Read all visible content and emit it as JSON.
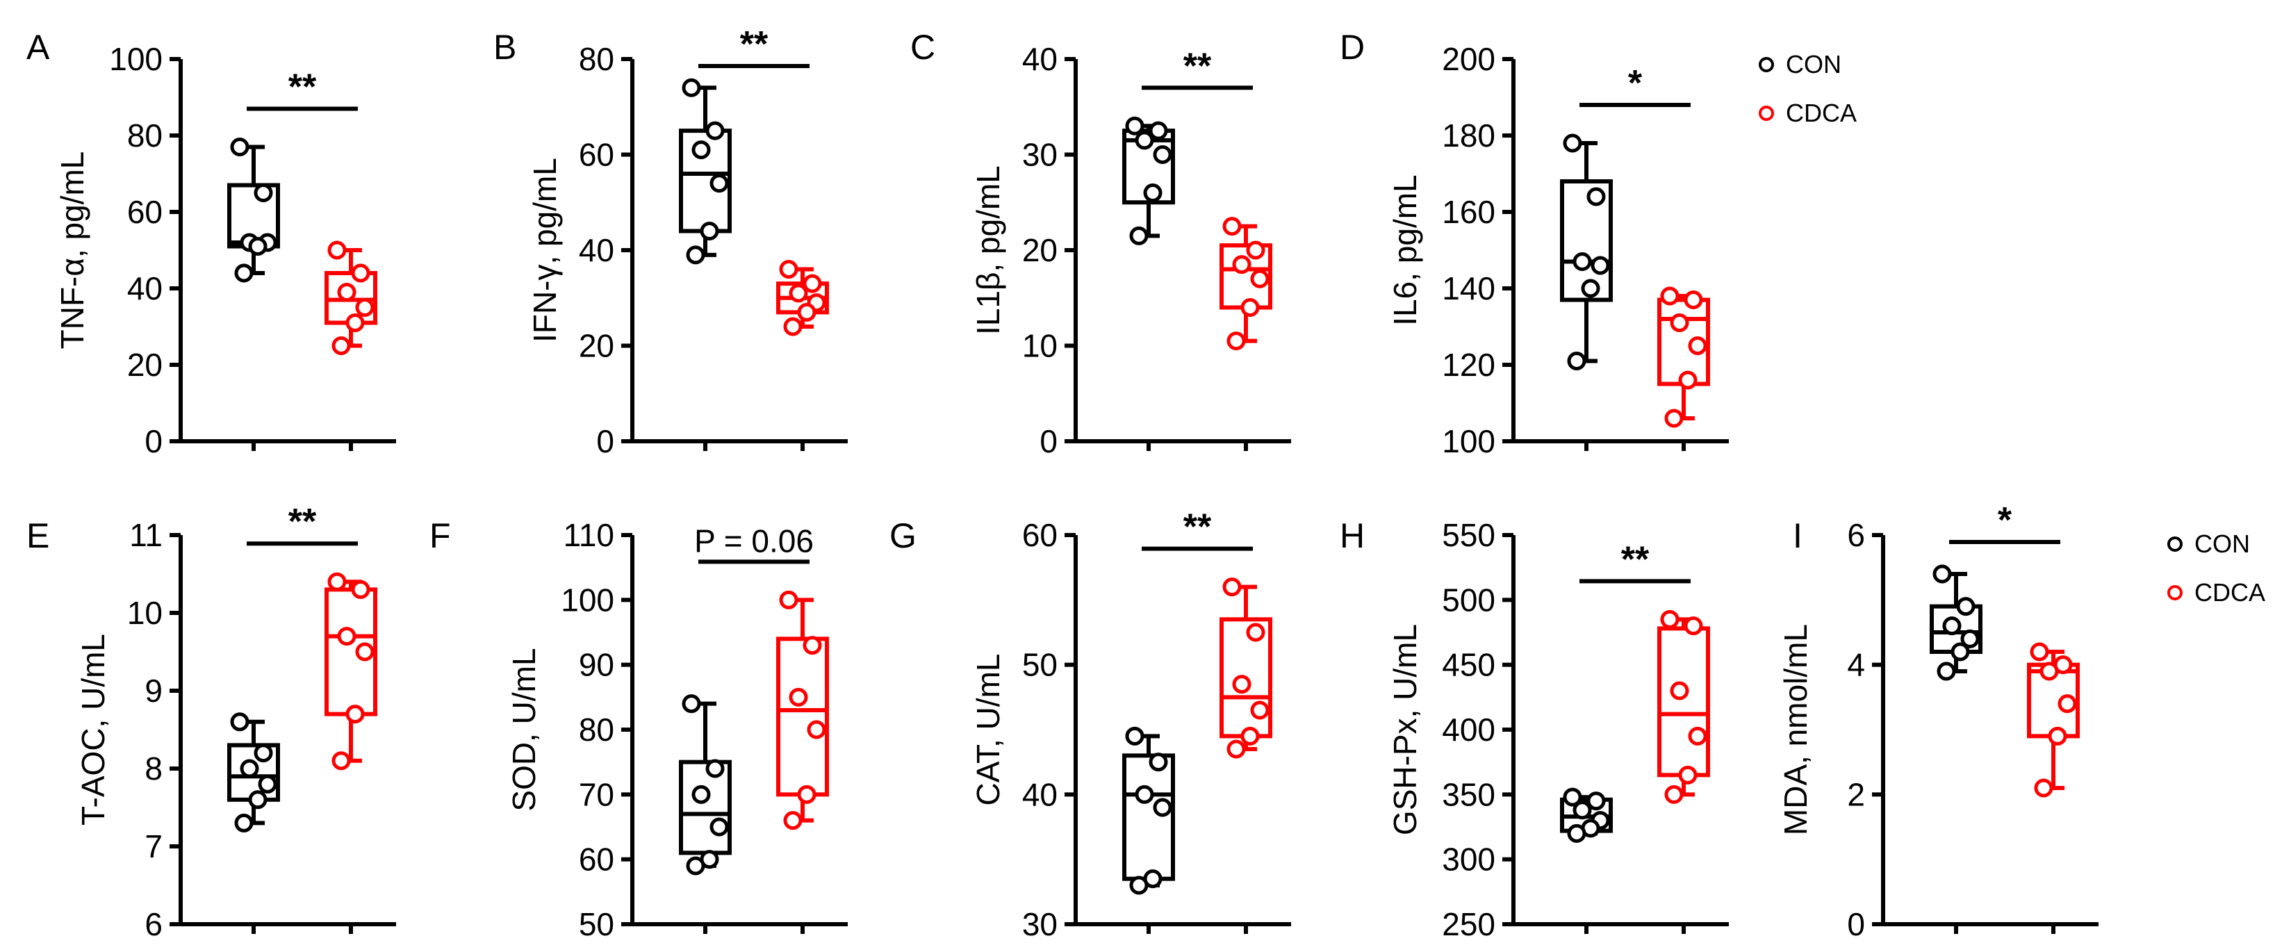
{
  "colors": {
    "CON": "#000000",
    "CDCA": "#ff0000"
  },
  "legend_labels": [
    "CON",
    "CDCA"
  ],
  "chart_data": [
    {
      "panel": "A",
      "type": "box",
      "ylabel": "TNF-α, pg/mL",
      "ylim": [
        0,
        100
      ],
      "yticks": [
        0,
        20,
        40,
        60,
        80,
        100
      ],
      "sig": "**",
      "groups": [
        {
          "name": "CON",
          "min": 44,
          "q1": 51,
          "median": 52,
          "q3": 67,
          "max": 77,
          "points": [
            77,
            65,
            52,
            52,
            51,
            44
          ]
        },
        {
          "name": "CDCA",
          "min": 25,
          "q1": 31,
          "median": 37,
          "q3": 44,
          "max": 50,
          "points": [
            50,
            44,
            39,
            35,
            31,
            25
          ]
        }
      ]
    },
    {
      "panel": "B",
      "type": "box",
      "ylabel": "IFN-γ, pg/mL",
      "ylim": [
        0,
        80
      ],
      "yticks": [
        0,
        20,
        40,
        60,
        80
      ],
      "sig": "**",
      "groups": [
        {
          "name": "CON",
          "min": 39,
          "q1": 44,
          "median": 56,
          "q3": 65,
          "max": 74,
          "points": [
            74,
            65,
            61,
            54,
            44,
            39
          ]
        },
        {
          "name": "CDCA",
          "min": 24,
          "q1": 27,
          "median": 30,
          "q3": 33,
          "max": 36,
          "points": [
            36,
            33,
            31,
            29,
            27,
            24
          ]
        }
      ]
    },
    {
      "panel": "C",
      "type": "box",
      "ylabel": "IL1β, pg/mL",
      "ylim": [
        0,
        40
      ],
      "yticks": [
        0,
        10,
        20,
        30,
        40
      ],
      "sig": "**",
      "groups": [
        {
          "name": "CON",
          "min": 21.5,
          "q1": 25,
          "median": 31.5,
          "q3": 32.5,
          "max": 33,
          "points": [
            33,
            32.5,
            31.5,
            30,
            26,
            21.5
          ]
        },
        {
          "name": "CDCA",
          "min": 10.5,
          "q1": 14,
          "median": 18,
          "q3": 20.5,
          "max": 22.5,
          "points": [
            22.5,
            20,
            18.5,
            17,
            14,
            10.5
          ]
        }
      ]
    },
    {
      "panel": "D",
      "type": "box",
      "ylabel": "IL6, pg/mL",
      "ylim": [
        100,
        200
      ],
      "yticks": [
        100,
        120,
        140,
        160,
        180,
        200
      ],
      "sig": "*",
      "groups": [
        {
          "name": "CON",
          "min": 121,
          "q1": 137,
          "median": 147,
          "q3": 168,
          "max": 178,
          "points": [
            178,
            164,
            147,
            146,
            140,
            121
          ]
        },
        {
          "name": "CDCA",
          "min": 106,
          "q1": 115,
          "median": 132,
          "q3": 137,
          "max": 138,
          "points": [
            138,
            137,
            131,
            125,
            116,
            106
          ]
        }
      ]
    },
    {
      "panel": "E",
      "type": "box",
      "ylabel": "T-AOC, U/mL",
      "ylim": [
        6,
        11
      ],
      "yticks": [
        6,
        7,
        8,
        9,
        10,
        11
      ],
      "sig": "**",
      "groups": [
        {
          "name": "CON",
          "min": 7.3,
          "q1": 7.6,
          "median": 7.9,
          "q3": 8.3,
          "max": 8.6,
          "points": [
            8.6,
            8.2,
            8.0,
            7.8,
            7.6,
            7.3
          ]
        },
        {
          "name": "CDCA",
          "min": 8.1,
          "q1": 8.7,
          "median": 9.7,
          "q3": 10.3,
          "max": 10.4,
          "points": [
            10.4,
            10.3,
            9.7,
            9.5,
            8.7,
            8.1
          ]
        }
      ]
    },
    {
      "panel": "F",
      "type": "box",
      "ylabel": "SOD, U/mL",
      "ylim": [
        50,
        110
      ],
      "yticks": [
        50,
        60,
        70,
        80,
        90,
        100,
        110
      ],
      "sig": "P = 0.06",
      "groups": [
        {
          "name": "CON",
          "min": 59,
          "q1": 61,
          "median": 67,
          "q3": 75,
          "max": 84,
          "points": [
            84,
            74,
            70,
            65,
            60,
            59
          ]
        },
        {
          "name": "CDCA",
          "min": 66,
          "q1": 70,
          "median": 83,
          "q3": 94,
          "max": 100,
          "points": [
            100,
            93,
            85,
            80,
            70,
            66
          ]
        }
      ]
    },
    {
      "panel": "G",
      "type": "box",
      "ylabel": "CAT, U/mL",
      "ylim": [
        30,
        60
      ],
      "yticks": [
        30,
        40,
        50,
        60
      ],
      "sig": "**",
      "groups": [
        {
          "name": "CON",
          "min": 33,
          "q1": 33.5,
          "median": 40,
          "q3": 43,
          "max": 44.5,
          "points": [
            44.5,
            42.5,
            40,
            39,
            33.5,
            33
          ]
        },
        {
          "name": "CDCA",
          "min": 43.5,
          "q1": 44.5,
          "median": 47.5,
          "q3": 53.5,
          "max": 56,
          "points": [
            56,
            52.5,
            48.5,
            46.5,
            44.5,
            43.5
          ]
        }
      ]
    },
    {
      "panel": "H",
      "type": "box",
      "ylabel": "GSH-Px, U/mL",
      "ylim": [
        250,
        550
      ],
      "yticks": [
        250,
        300,
        350,
        400,
        450,
        500,
        550
      ],
      "sig": "**",
      "groups": [
        {
          "name": "CON",
          "min": 320,
          "q1": 322,
          "median": 333,
          "q3": 346,
          "max": 348,
          "points": [
            348,
            345,
            338,
            330,
            324,
            320
          ]
        },
        {
          "name": "CDCA",
          "min": 350,
          "q1": 365,
          "median": 412,
          "q3": 478,
          "max": 485,
          "points": [
            485,
            480,
            430,
            395,
            365,
            350
          ]
        }
      ]
    },
    {
      "panel": "I",
      "type": "box",
      "ylabel": "MDA, nmol/mL",
      "ylim": [
        0,
        6
      ],
      "yticks": [
        0,
        2,
        4,
        6
      ],
      "sig": "*",
      "groups": [
        {
          "name": "CON",
          "min": 3.9,
          "q1": 4.2,
          "median": 4.5,
          "q3": 4.9,
          "max": 5.4,
          "points": [
            5.4,
            4.9,
            4.6,
            4.4,
            4.2,
            3.9
          ]
        },
        {
          "name": "CDCA",
          "min": 2.1,
          "q1": 2.9,
          "median": 3.9,
          "q3": 4.0,
          "max": 4.2,
          "points": [
            4.2,
            4.0,
            3.9,
            3.4,
            2.9,
            2.1
          ]
        }
      ]
    }
  ]
}
